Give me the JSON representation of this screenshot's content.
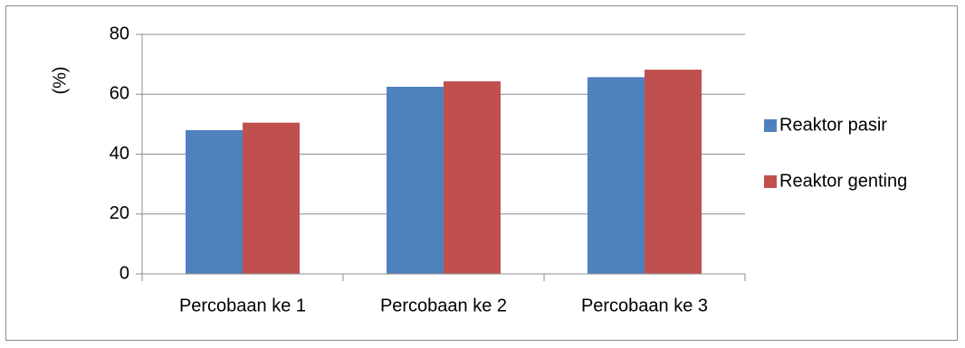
{
  "chart_data": {
    "type": "bar",
    "title": "",
    "xlabel": "",
    "ylabel": "(%)",
    "categories": [
      "Percobaan ke 1",
      "Percobaan ke 2",
      "Percobaan ke 3"
    ],
    "series": [
      {
        "name": "Reaktor pasir",
        "values": [
          48,
          62.5,
          65.7
        ],
        "color": "#4f81bd"
      },
      {
        "name": "Reaktor genting",
        "values": [
          50.5,
          64.3,
          68.2
        ],
        "color": "#c0504d"
      }
    ],
    "ylim": [
      0,
      80
    ],
    "yticks": [
      0,
      20,
      40,
      60,
      80
    ],
    "grid": true,
    "legend_position": "right"
  }
}
